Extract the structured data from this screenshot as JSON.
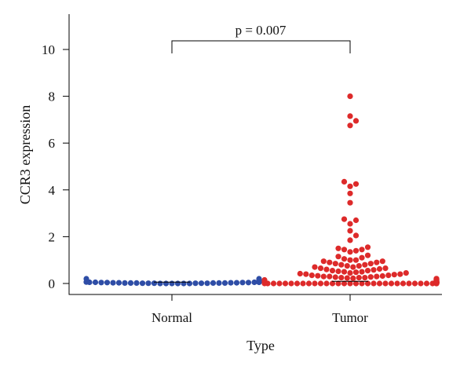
{
  "chart_data": {
    "type": "scatter",
    "subtype": "beeswarm",
    "xlabel": "Type",
    "ylabel": "CCR3 expression",
    "ylim": [
      -0.5,
      11
    ],
    "yticks": [
      0,
      2,
      4,
      6,
      8,
      10
    ],
    "ytick_labels": [
      "0",
      "2",
      "4",
      "6",
      "8",
      "10"
    ],
    "categories": [
      "Normal",
      "Tumor"
    ],
    "annotation": "p = 0.007",
    "grid": false,
    "series": [
      {
        "color": "#2E4DA6",
        "values": [
          0.2,
          0.2,
          0.12,
          0.12,
          0.1,
          0.1,
          0.08,
          0.08,
          0.08,
          0.08,
          0.06,
          0.06,
          0.05,
          0.05,
          0.05,
          0.05,
          0.04,
          0.04,
          0.04,
          0.04,
          0.03,
          0.03,
          0.03,
          0.03,
          0.02,
          0.02,
          0.02,
          0.02,
          0.02,
          0.02,
          0.01,
          0.01,
          0.01,
          0.01,
          0.01,
          0.01,
          0,
          0,
          0,
          0,
          0,
          0
        ]
      },
      {
        "color": "#DD2A2A",
        "values": [
          8.0,
          7.15,
          6.95,
          6.75,
          4.35,
          4.25,
          4.15,
          3.85,
          3.45,
          2.75,
          2.7,
          2.55,
          2.25,
          2.05,
          1.85,
          1.55,
          1.5,
          1.45,
          1.45,
          1.4,
          1.35,
          1.2,
          1.15,
          1.1,
          1.05,
          1.0,
          1.0,
          0.95,
          0.95,
          0.9,
          0.9,
          0.85,
          0.85,
          0.8,
          0.8,
          0.75,
          0.75,
          0.7,
          0.7,
          0.65,
          0.65,
          0.62,
          0.6,
          0.58,
          0.55,
          0.55,
          0.52,
          0.5,
          0.5,
          0.48,
          0.45,
          0.45,
          0.42,
          0.4,
          0.4,
          0.38,
          0.35,
          0.35,
          0.33,
          0.32,
          0.3,
          0.3,
          0.3,
          0.28,
          0.27,
          0.25,
          0.25,
          0.25,
          0.23,
          0.22,
          0.2,
          0.2,
          0.2,
          0.2,
          0.18,
          0.17,
          0.15,
          0.15,
          0.15,
          0.15,
          0.15,
          0.13,
          0.12,
          0.12,
          0.1,
          0.1,
          0.1,
          0.1,
          0.1,
          0.1,
          0.09,
          0.08,
          0.08,
          0.08,
          0.08,
          0.07,
          0.07,
          0.06,
          0.06,
          0.06,
          0.06,
          0.05,
          0.05,
          0.05,
          0.05,
          0.05,
          0.05,
          0.04,
          0.04,
          0.04,
          0.04,
          0.04,
          0.04,
          0.03,
          0.03,
          0.03,
          0.03,
          0.03,
          0.03,
          0.03,
          0.02,
          0.02,
          0.02,
          0.02,
          0.02,
          0.02,
          0.02,
          0.02,
          0.01,
          0.01,
          0.01,
          0.01,
          0.01,
          0.01,
          0.01,
          0.01,
          0.01,
          0.01,
          0,
          0,
          0,
          0,
          0,
          0,
          0,
          0,
          0,
          0,
          0,
          0,
          0,
          0,
          0,
          0,
          0,
          0,
          0,
          0,
          0,
          0,
          0,
          0,
          0,
          0,
          0,
          0,
          0,
          0,
          0,
          0
        ]
      }
    ]
  }
}
